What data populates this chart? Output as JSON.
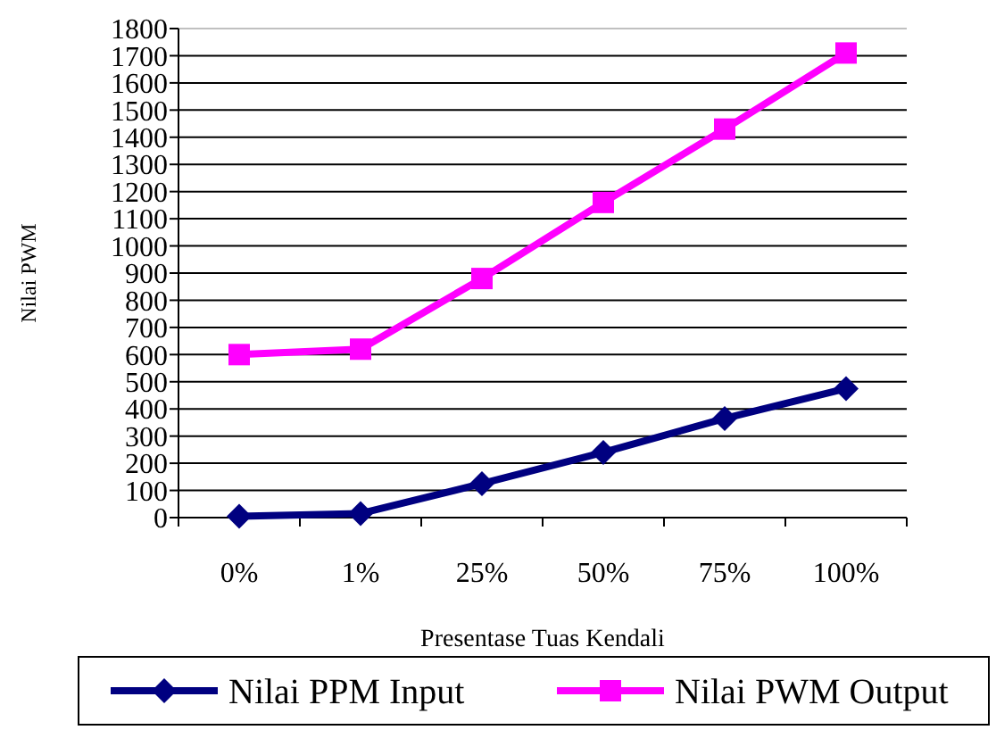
{
  "chart_data": {
    "type": "line",
    "xlabel": "Presentase Tuas Kendali",
    "ylabel": "Nilai PWM",
    "categories": [
      "0%",
      "1%",
      "25%",
      "50%",
      "75%",
      "100%"
    ],
    "series": [
      {
        "name": "Nilai PPM Input",
        "color": "#000080",
        "values": [
          5,
          15,
          125,
          240,
          365,
          475
        ],
        "marker": "diamond"
      },
      {
        "name": "Nilai PWM Output",
        "color": "#ff00ff",
        "values": [
          600,
          620,
          880,
          1160,
          1430,
          1710
        ],
        "marker": "square"
      }
    ],
    "ylim": [
      0,
      1800
    ],
    "yticks": [
      0,
      100,
      200,
      300,
      400,
      500,
      600,
      700,
      800,
      900,
      1000,
      1100,
      1200,
      1300,
      1400,
      1500,
      1600,
      1700,
      1800
    ],
    "grid": "y",
    "legend": "bottom"
  }
}
